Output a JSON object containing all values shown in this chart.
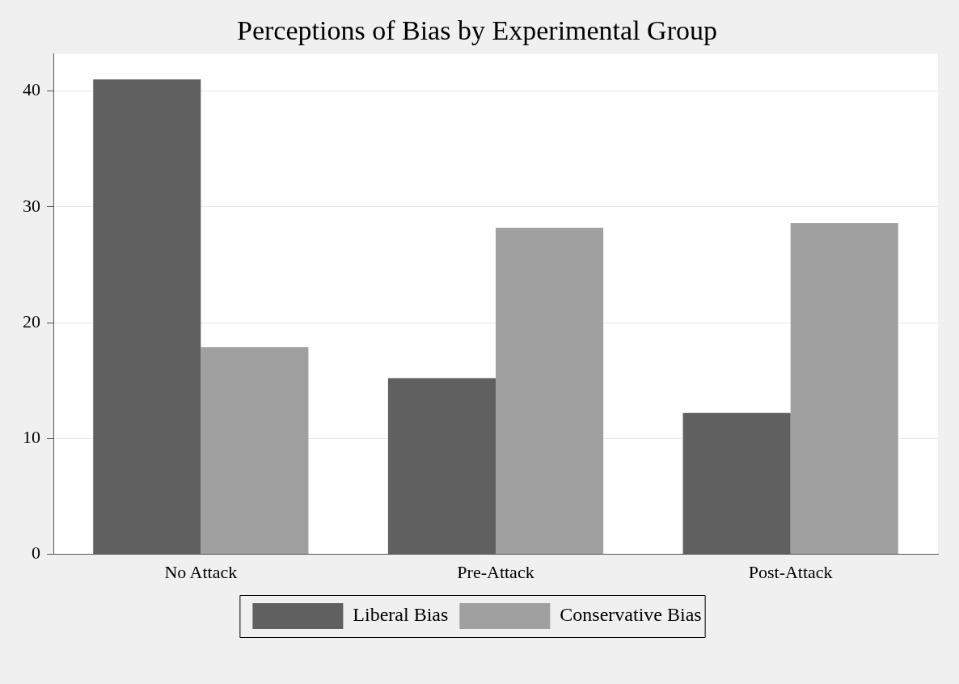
{
  "chart_data": {
    "type": "bar",
    "title": "Perceptions of Bias by Experimental Group",
    "categories": [
      "No Attack",
      "Pre-Attack",
      "Post-Attack"
    ],
    "series": [
      {
        "name": "Liberal Bias",
        "color": "#606060",
        "values": [
          41.0,
          15.2,
          12.2
        ]
      },
      {
        "name": "Conservative Bias",
        "color": "#a0a0a0",
        "values": [
          17.9,
          28.2,
          28.6
        ]
      }
    ],
    "ylim": [
      0,
      43.2
    ],
    "yticks": [
      0,
      10,
      20,
      30,
      40
    ],
    "grid": "y",
    "legend": "bottom"
  }
}
